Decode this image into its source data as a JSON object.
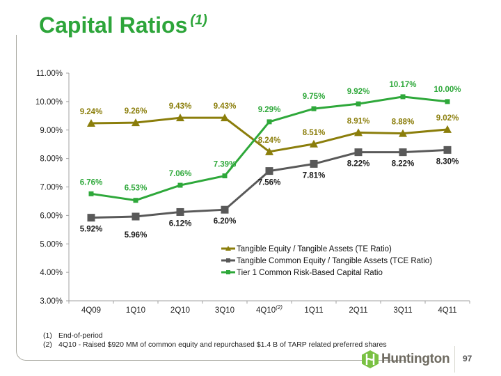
{
  "slide": {
    "title": "Capital Ratios",
    "title_superscript": "(1)",
    "page_number": "97",
    "logo_text": "Huntington",
    "footnotes": [
      {
        "num": "(1)",
        "text": "End-of-period"
      },
      {
        "num": "(2)",
        "text": "4Q10  - Raised $920 MM of common equity and repurchased $1.4 B of TARP related preferred shares"
      }
    ]
  },
  "colors": {
    "title": "#2da53a",
    "te": "#8b7e0b",
    "tce": "#595959",
    "tier1": "#2ea83a",
    "axis": "#a0a0a0"
  },
  "chart_data": {
    "type": "line",
    "title": "",
    "xlabel": "",
    "ylabel": "",
    "categories": [
      "4Q09",
      "1Q10",
      "2Q10",
      "3Q10",
      "4Q10",
      "1Q11",
      "2Q11",
      "3Q11",
      "4Q11"
    ],
    "category_superscripts": {
      "4Q10": "(2)"
    },
    "ylim": [
      3.0,
      11.0
    ],
    "yticks": [
      3.0,
      4.0,
      5.0,
      6.0,
      7.0,
      8.0,
      9.0,
      10.0,
      11.0
    ],
    "ytick_labels": [
      "3.00%",
      "4.00%",
      "5.00%",
      "6.00%",
      "7.00%",
      "8.00%",
      "9.00%",
      "10.00%",
      "11.00%"
    ],
    "grid": false,
    "legend_position": "bottom-right-inside",
    "series": [
      {
        "name": "Tangible Equity / Tangible Assets (TE Ratio)",
        "key": "te",
        "marker": "triangle",
        "values": [
          9.24,
          9.26,
          9.43,
          9.43,
          8.24,
          8.51,
          8.91,
          8.88,
          9.02
        ],
        "labels": [
          "9.24%",
          "9.26%",
          "9.43%",
          "9.43%",
          "8.24%",
          "8.51%",
          "8.91%",
          "8.88%",
          "9.02%"
        ],
        "label_position": "above"
      },
      {
        "name": "Tangible Common Equity / Tangible Assets (TCE Ratio)",
        "key": "tce",
        "marker": "square",
        "values": [
          5.92,
          5.96,
          6.12,
          6.2,
          7.56,
          7.81,
          8.22,
          8.22,
          8.3
        ],
        "labels": [
          "5.92%",
          "5.96%",
          "6.12%",
          "6.20%",
          "7.56%",
          "7.81%",
          "8.22%",
          "8.22%",
          "8.30%"
        ],
        "label_position": "below"
      },
      {
        "name": "Tier 1 Common Risk-Based Capital Ratio",
        "key": "tier1",
        "marker": "small-square",
        "values": [
          6.76,
          6.53,
          7.06,
          7.39,
          9.29,
          9.75,
          9.92,
          10.17,
          10.0
        ],
        "labels": [
          "6.76%",
          "6.53%",
          "7.06%",
          "7.39%",
          "9.29%",
          "9.75%",
          "9.92%",
          "10.17%",
          "10.00%"
        ],
        "label_position": "above"
      }
    ]
  }
}
